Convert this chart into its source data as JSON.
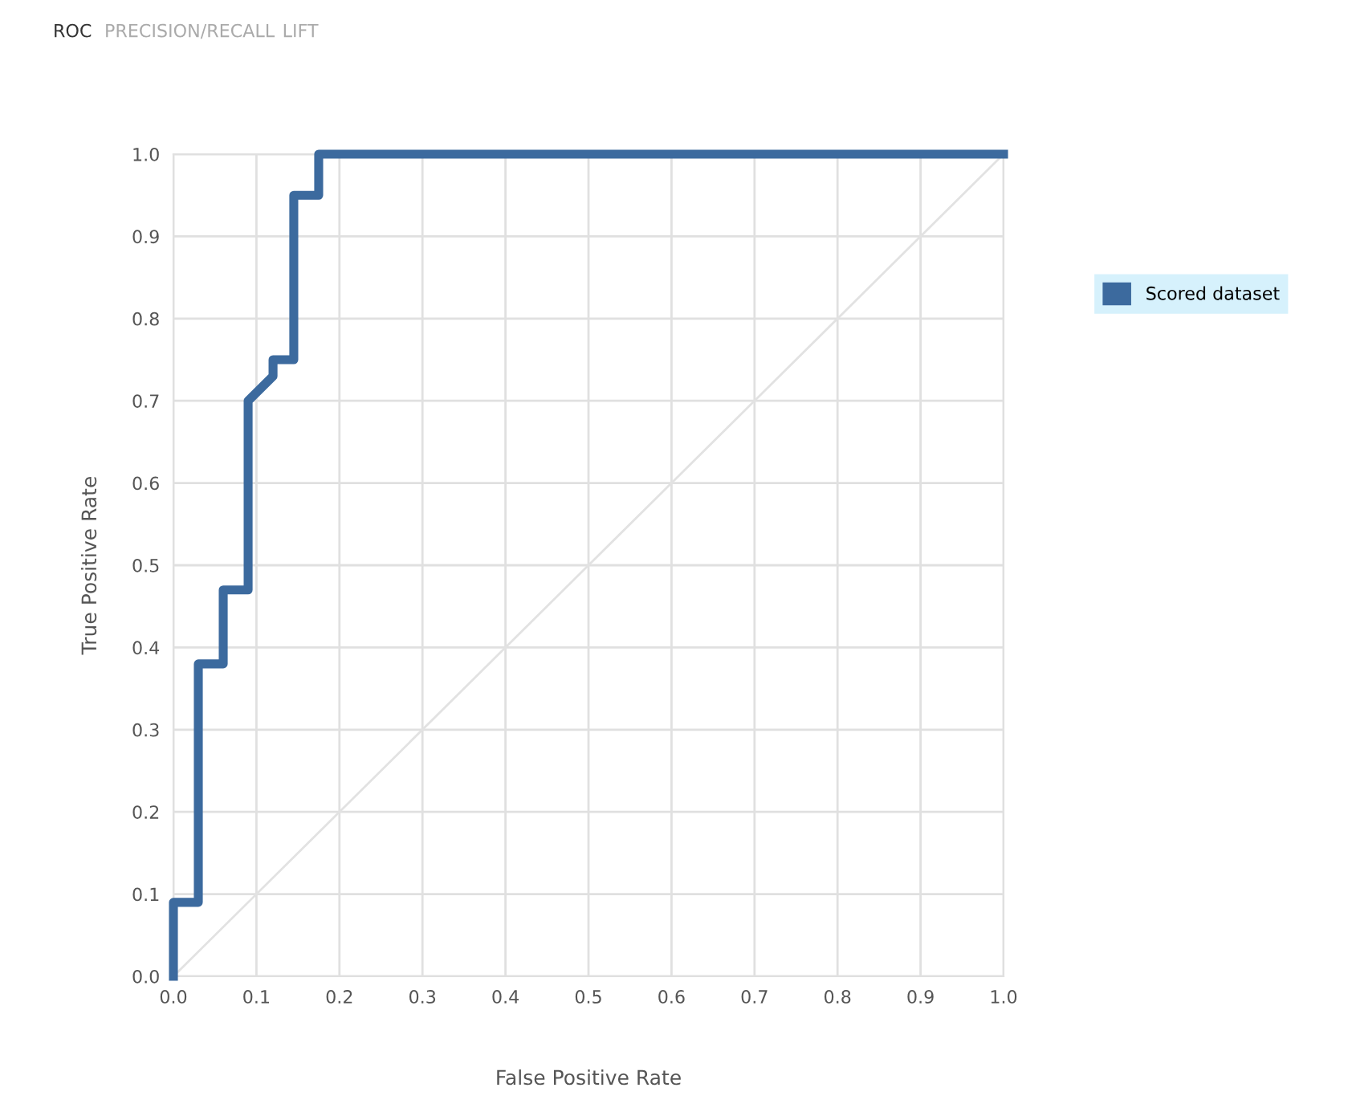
{
  "chart_data": {
    "type": "line",
    "title": "ROC",
    "annotations": [
      "PRECISION/RECALL",
      "LIFT"
    ],
    "xlabel": "False Positive Rate",
    "ylabel": "True Positive Rate",
    "series": [
      {
        "name": "Scored dataset",
        "color": "#3c6a9e",
        "x": [
          0,
          0,
          0.03,
          0.03,
          0.06,
          0.06,
          0.09,
          0.09,
          0.12,
          0.12,
          0.145,
          0.145,
          0.175,
          0.175,
          1.0
        ],
        "values": [
          0,
          0.09,
          0.09,
          0.38,
          0.38,
          0.47,
          0.47,
          0.7,
          0.73,
          0.75,
          0.75,
          0.95,
          0.95,
          1.0,
          1.0
        ]
      },
      {
        "color": "#e2e2e2",
        "x": [
          0,
          1.0
        ],
        "values": [
          0,
          1.0
        ]
      }
    ],
    "xlim": [
      0,
      1.0
    ],
    "ylim": [
      0,
      1.0
    ],
    "xticks": [
      {
        "value": 0,
        "label": "0.0"
      },
      0.1,
      0.2,
      0.3,
      0.4,
      0.5,
      0.6,
      0.7,
      0.8,
      0.9,
      {
        "value": 1,
        "label": "1.0"
      }
    ],
    "yticks": [
      {
        "value": 0,
        "label": "0.0"
      },
      0.1,
      0.2,
      0.3,
      0.4,
      0.5,
      0.6,
      0.7,
      0.8,
      0.9,
      {
        "value": 1,
        "label": "1.0"
      }
    ],
    "grid": true,
    "legend": "right",
    "line_style": "solid",
    "marker": "none"
  }
}
